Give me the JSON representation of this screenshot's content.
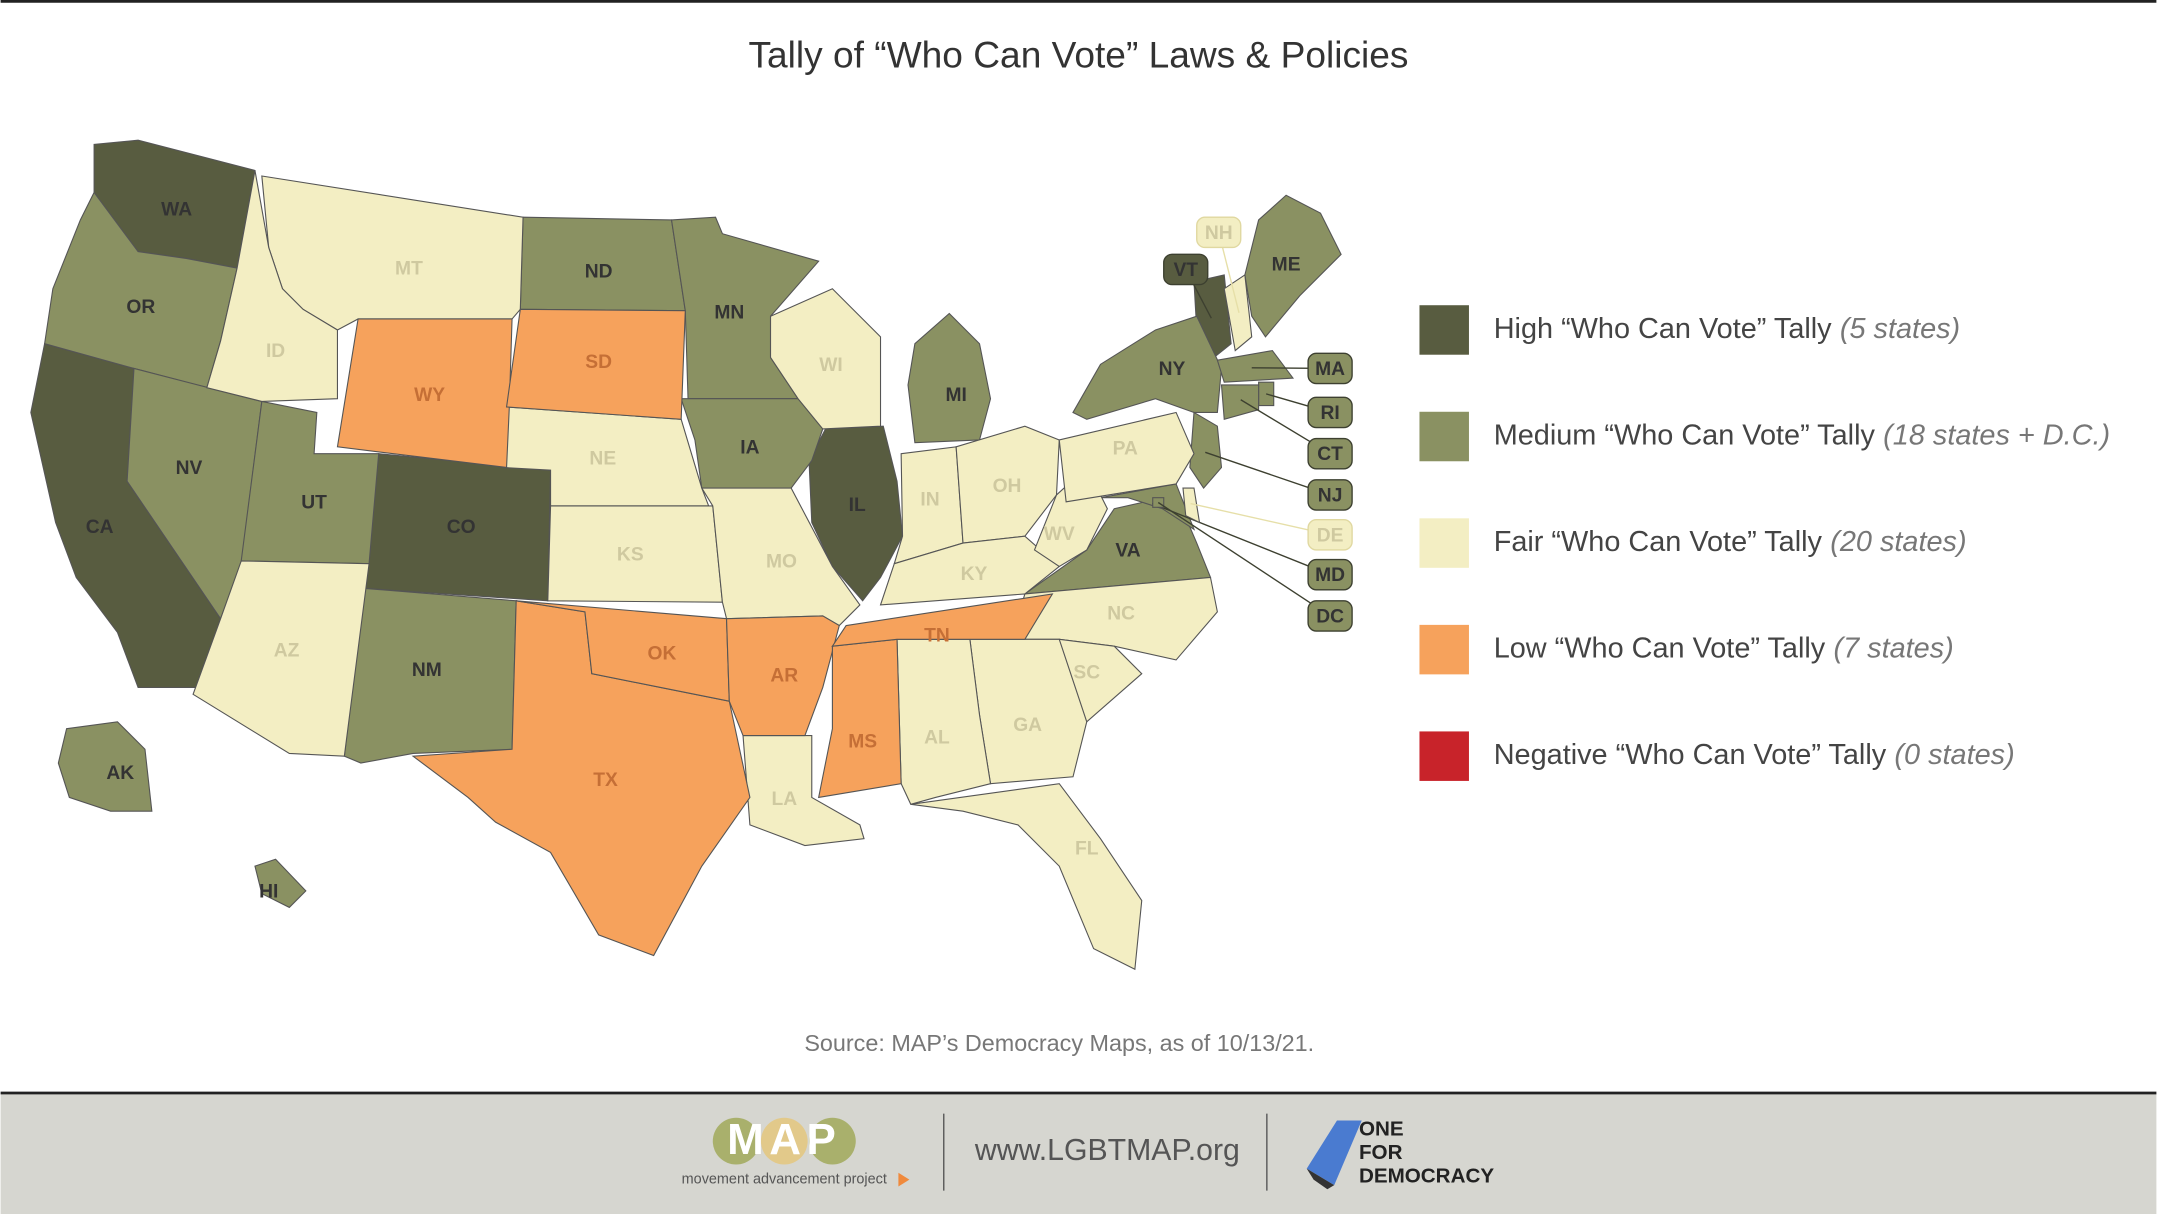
{
  "title": "Tally of “Who Can Vote” Laws & Policies",
  "legend": {
    "items": [
      {
        "label": "High “Who Can Vote” Tally",
        "count": "(5 states)",
        "color": "#585c40",
        "states": [
          "WA",
          "CA",
          "CO",
          "IL",
          "VT"
        ]
      },
      {
        "label": "Medium “Who Can Vote” Tally",
        "count": "(18 states + D.C.)",
        "color": "#8a9162",
        "states": [
          "OR",
          "NV",
          "UT",
          "NM",
          "ND",
          "MN",
          "IA",
          "MI",
          "NY",
          "ME",
          "VA",
          "MA",
          "RI",
          "CT",
          "NJ",
          "MD",
          "AK",
          "HI",
          "DC"
        ]
      },
      {
        "label": "Fair “Who Can Vote” Tally",
        "count": "(20 states)",
        "color": "#f3eec3",
        "states": [
          "MT",
          "ID",
          "AZ",
          "NE",
          "KS",
          "MO",
          "WI",
          "IN",
          "OH",
          "KY",
          "WV",
          "PA",
          "NC",
          "SC",
          "GA",
          "AL",
          "FL",
          "LA",
          "NH",
          "DE"
        ]
      },
      {
        "label": "Low “Who Can Vote” Tally",
        "count": "(7 states)",
        "color": "#f6a25c",
        "states": [
          "WY",
          "SD",
          "TX",
          "OK",
          "AR",
          "MS",
          "TN"
        ]
      },
      {
        "label": "Negative “Who Can Vote” Tally",
        "count": "(0 states)",
        "color": "#c8232a",
        "states": []
      }
    ]
  },
  "source": "Source: MAP’s Democracy Maps, as of 10/13/21.",
  "footer": {
    "logo": "MAP",
    "logo_caption": "movement advancement project",
    "url": "www.LGBTMAP.org",
    "partner": [
      "ONE",
      "FOR",
      "DEMOCRACY"
    ]
  }
}
